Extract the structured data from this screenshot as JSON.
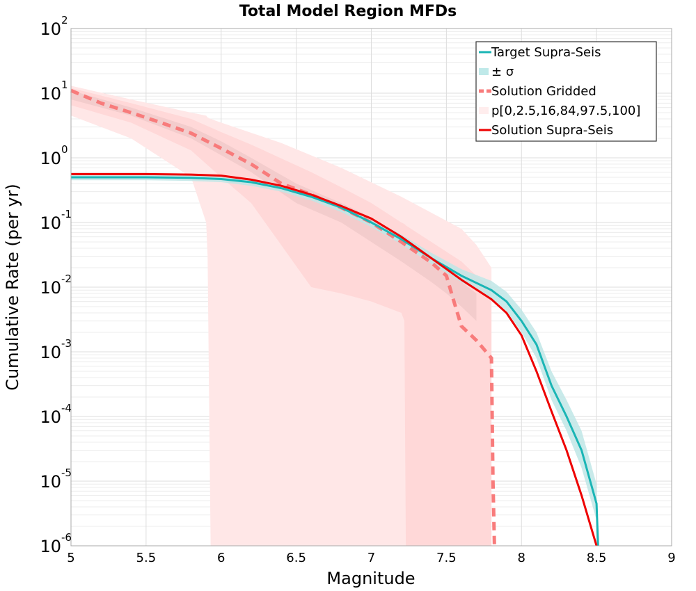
{
  "chart_data": {
    "type": "line",
    "title": "Total Model Region MFDs",
    "xlabel": "Magnitude",
    "ylabel": "Cumulative Rate (per yr)",
    "xlim": [
      5,
      9
    ],
    "ylim": [
      1e-06,
      100
    ],
    "yscale": "log",
    "grid": true,
    "legend_position": "top-right",
    "x_ticks": [
      "5",
      "5.5",
      "6",
      "6.5",
      "7",
      "7.5",
      "8",
      "8.5",
      "9"
    ],
    "y_ticks": [
      {
        "base": "10",
        "exp": "2"
      },
      {
        "base": "10",
        "exp": "1"
      },
      {
        "base": "10",
        "exp": "0"
      },
      {
        "base": "10",
        "exp": "-1"
      },
      {
        "base": "10",
        "exp": "-2"
      },
      {
        "base": "10",
        "exp": "-3"
      },
      {
        "base": "10",
        "exp": "-4"
      },
      {
        "base": "10",
        "exp": "-5"
      },
      {
        "base": "10",
        "exp": "-6"
      }
    ],
    "legend": [
      {
        "label": "Target Supra-Seis",
        "style": "line",
        "color": "#1ab5b5"
      },
      {
        "label": "± σ",
        "style": "band",
        "color": "#bfe9e9"
      },
      {
        "label": "Solution Gridded",
        "style": "dashed",
        "color": "#f87b7b"
      },
      {
        "label": "p[0,2.5,16,84,97.5,100]",
        "style": "band",
        "color": "#ffeded"
      },
      {
        "label": "Solution Supra-Seis",
        "style": "line",
        "color": "#ee0000"
      }
    ],
    "colors": {
      "target": "#1ab5b5",
      "sigma_band": "#bfe6e6",
      "gridded": "#f87b7b",
      "supra": "#ee0000",
      "band_outer": "#ffe7e7",
      "band_mid": "#ffd8d8",
      "band_inner": "#f3cccc"
    },
    "series": [
      {
        "name": "Target Supra-Seis",
        "x": [
          5.0,
          5.5,
          5.8,
          6.0,
          6.2,
          6.4,
          6.6,
          6.8,
          7.0,
          7.2,
          7.4,
          7.6,
          7.8,
          7.9,
          8.0,
          8.1,
          8.2,
          8.3,
          8.4,
          8.5,
          8.51
        ],
        "y": [
          0.5,
          0.5,
          0.49,
          0.47,
          0.42,
          0.34,
          0.25,
          0.17,
          0.1,
          0.055,
          0.028,
          0.015,
          0.009,
          0.006,
          0.003,
          0.0013,
          0.0003,
          0.0001,
          3e-05,
          4.5e-06,
          1e-06
        ]
      },
      {
        "name": "± σ",
        "x": [
          5.0,
          5.5,
          5.8,
          6.0,
          6.2,
          6.4,
          6.6,
          6.8,
          7.0,
          7.2,
          7.4,
          7.6,
          7.8,
          7.9,
          8.0,
          8.1,
          8.2,
          8.3,
          8.4,
          8.5
        ],
        "upper": [
          0.55,
          0.55,
          0.54,
          0.52,
          0.47,
          0.38,
          0.28,
          0.19,
          0.115,
          0.065,
          0.034,
          0.019,
          0.0125,
          0.0085,
          0.0045,
          0.002,
          0.0005,
          0.00018,
          6e-05,
          9e-06
        ],
        "lower": [
          0.45,
          0.45,
          0.44,
          0.42,
          0.37,
          0.3,
          0.22,
          0.145,
          0.085,
          0.046,
          0.023,
          0.012,
          0.0068,
          0.0043,
          0.002,
          0.0008,
          0.00018,
          6e-05,
          1.6e-05,
          2.5e-06
        ]
      },
      {
        "name": "Solution Gridded",
        "x": [
          5.0,
          5.2,
          5.4,
          5.6,
          5.8,
          6.0,
          6.2,
          6.4,
          6.6,
          6.8,
          7.0,
          7.2,
          7.4,
          7.5,
          7.55,
          7.6,
          7.7,
          7.8,
          7.81,
          7.82
        ],
        "y": [
          11,
          7,
          5,
          3.5,
          2.4,
          1.4,
          0.8,
          0.4,
          0.27,
          0.17,
          0.1,
          0.05,
          0.024,
          0.015,
          0.006,
          0.0025,
          0.0015,
          0.0008,
          1e-05,
          1e-06
        ]
      },
      {
        "name": "Solution Supra-Seis",
        "x": [
          5.0,
          5.5,
          5.8,
          6.0,
          6.2,
          6.4,
          6.6,
          6.8,
          7.0,
          7.2,
          7.4,
          7.6,
          7.8,
          7.9,
          8.0,
          8.1,
          8.2,
          8.3,
          8.4,
          8.5
        ],
        "y": [
          0.56,
          0.56,
          0.55,
          0.53,
          0.46,
          0.37,
          0.27,
          0.18,
          0.115,
          0.06,
          0.028,
          0.013,
          0.0065,
          0.004,
          0.0018,
          0.0005,
          0.00012,
          3e-05,
          6e-06,
          1e-06
        ]
      }
    ],
    "percentile_bands": [
      {
        "name": "p0-100",
        "x": [
          5.0,
          5.4,
          5.8,
          5.9,
          5.91,
          5.93,
          6.0,
          6.4,
          6.8,
          7.2,
          7.6,
          7.7,
          7.8
        ],
        "upper": [
          13,
          8,
          5,
          4.5,
          4.2,
          4.0,
          3.5,
          1.7,
          0.7,
          0.25,
          0.08,
          0.045,
          0.02
        ],
        "lower": [
          4.5,
          2.0,
          0.5,
          0.1,
          0.03,
          1e-06,
          1e-06,
          1e-06,
          1e-06,
          1e-06,
          1e-06,
          1e-06,
          1e-06
        ]
      },
      {
        "name": "p2.5-97.5",
        "x": [
          5.0,
          5.4,
          5.8,
          6.0,
          6.2,
          6.6,
          6.8,
          7.0,
          7.2,
          7.22,
          7.23,
          7.4,
          7.6,
          7.7,
          7.8
        ],
        "upper": [
          12,
          7,
          4,
          2.5,
          1.6,
          0.6,
          0.35,
          0.2,
          0.1,
          0.095,
          0.09,
          0.05,
          0.025,
          0.015,
          0.01
        ],
        "lower": [
          6.5,
          3.5,
          1.3,
          0.5,
          0.2,
          0.01,
          0.008,
          0.006,
          0.004,
          0.003,
          1e-06,
          1e-06,
          1e-06,
          1e-06,
          1e-06
        ]
      },
      {
        "name": "p16-84",
        "x": [
          5.0,
          5.4,
          5.8,
          6.0,
          6.2,
          6.5,
          6.8,
          7.0,
          7.2,
          7.4,
          7.5,
          7.6,
          7.7
        ],
        "upper": [
          11,
          6,
          3,
          1.8,
          1.0,
          0.4,
          0.2,
          0.12,
          0.06,
          0.03,
          0.02,
          0.012,
          0.008
        ],
        "lower": [
          8,
          4.5,
          2.0,
          1.1,
          0.6,
          0.2,
          0.1,
          0.05,
          0.025,
          0.012,
          0.008,
          0.005,
          0.003
        ]
      }
    ]
  }
}
